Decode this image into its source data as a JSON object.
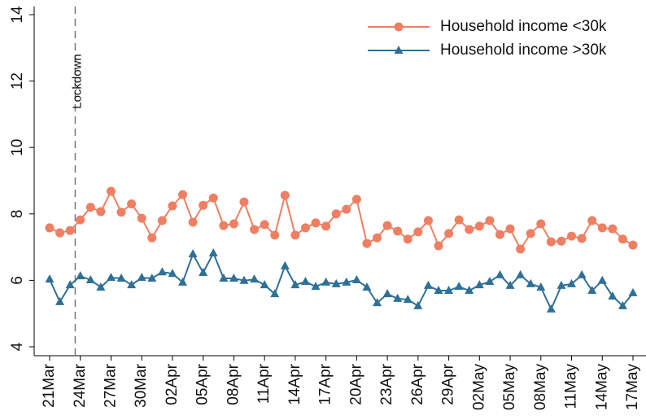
{
  "chart_data": {
    "type": "line",
    "categories": [
      "21Mar",
      null,
      null,
      "24Mar",
      null,
      null,
      "27Mar",
      null,
      null,
      "30Mar",
      null,
      null,
      "02Apr",
      null,
      null,
      "05Apr",
      null,
      null,
      "08Apr",
      null,
      null,
      "11Apr",
      null,
      null,
      "14Apr",
      null,
      null,
      "17Apr",
      null,
      null,
      "20Apr",
      null,
      null,
      "23Apr",
      null,
      null,
      "26Apr",
      null,
      null,
      "29Apr",
      null,
      null,
      "02May",
      null,
      null,
      "05May",
      null,
      null,
      "08May",
      null,
      null,
      "11May",
      null,
      null,
      "14May",
      null,
      null,
      "17May"
    ],
    "series": [
      {
        "name": "Household income <30k",
        "color": "#ef7f62",
        "marker": "circle",
        "values": [
          7.58,
          7.43,
          7.5,
          7.82,
          8.2,
          8.07,
          8.68,
          8.05,
          8.3,
          7.87,
          7.28,
          7.8,
          8.24,
          8.58,
          7.75,
          8.26,
          8.48,
          7.65,
          7.7,
          8.36,
          7.53,
          7.68,
          7.36,
          8.56,
          7.36,
          7.58,
          7.73,
          7.63,
          8.0,
          8.14,
          8.44,
          7.11,
          7.28,
          7.65,
          7.48,
          7.24,
          7.46,
          7.8,
          7.04,
          7.41,
          7.82,
          7.53,
          7.63,
          7.8,
          7.38,
          7.55,
          6.94,
          7.41,
          7.7,
          7.16,
          7.18,
          7.33,
          7.26,
          7.8,
          7.58,
          7.55,
          7.24,
          7.06
        ]
      },
      {
        "name": "Household income >30k",
        "color": "#2f7097",
        "marker": "triangle",
        "values": [
          6.03,
          5.35,
          5.86,
          6.13,
          6.01,
          5.79,
          6.08,
          6.06,
          5.86,
          6.08,
          6.06,
          6.25,
          6.2,
          5.94,
          6.79,
          6.23,
          6.82,
          6.06,
          6.06,
          5.99,
          6.03,
          5.86,
          5.59,
          6.43,
          5.86,
          5.96,
          5.81,
          5.94,
          5.89,
          5.94,
          6.01,
          5.79,
          5.32,
          5.59,
          5.45,
          5.42,
          5.23,
          5.84,
          5.69,
          5.69,
          5.81,
          5.69,
          5.86,
          5.96,
          6.16,
          5.84,
          6.16,
          5.89,
          5.79,
          5.13,
          5.84,
          5.89,
          6.16,
          5.69,
          5.99,
          5.52,
          5.23,
          5.62
        ]
      }
    ],
    "ylim": [
      4,
      14
    ],
    "yticks": [
      4,
      6,
      8,
      10,
      12,
      14
    ],
    "grid": false,
    "legend": "top-right",
    "annotations": [
      {
        "text": "Lockdown",
        "x": 2.5
      }
    ]
  }
}
